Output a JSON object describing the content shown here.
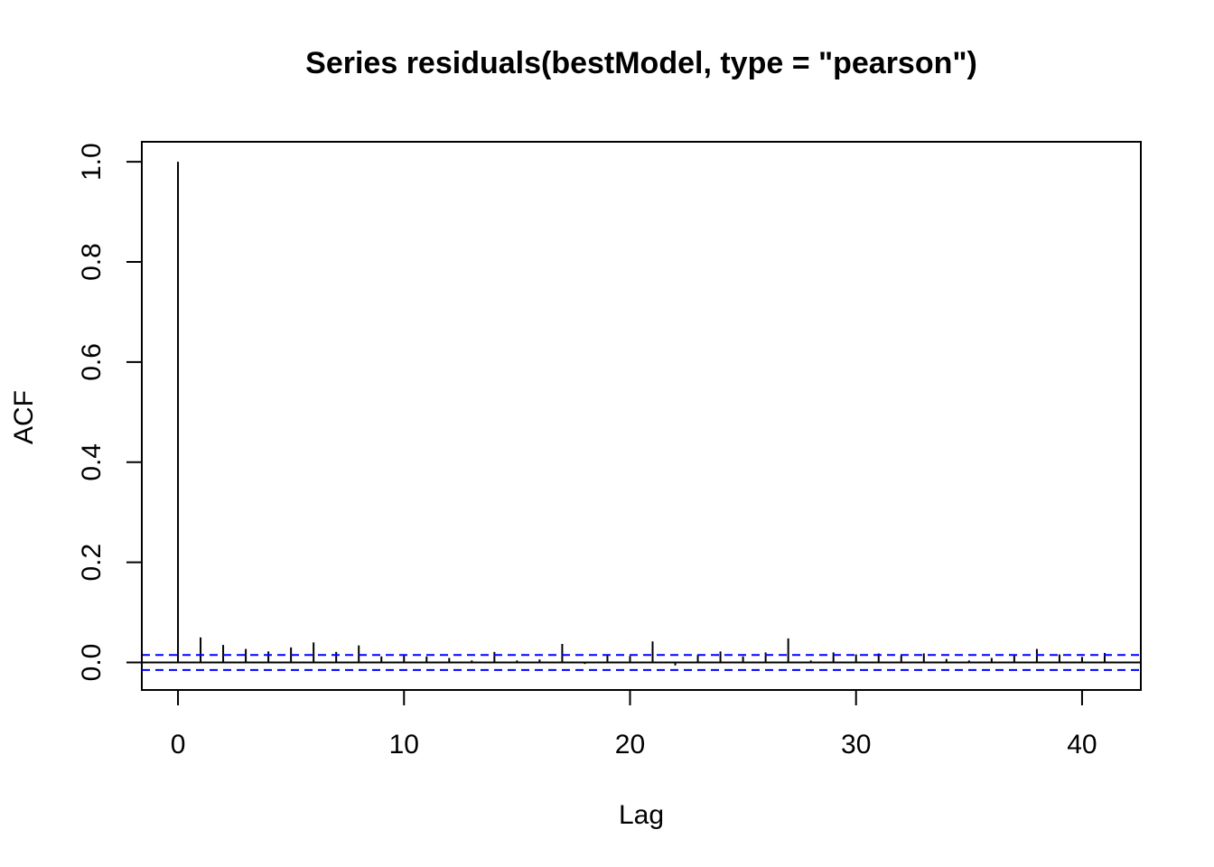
{
  "chart_data": {
    "type": "bar",
    "title": "Series  residuals(bestModel, type = \"pearson\")",
    "xlabel": "Lag",
    "ylabel": "ACF",
    "xlim": [
      -1.6,
      42.6
    ],
    "ylim": [
      -0.055,
      1.04
    ],
    "x_ticks": [
      0,
      10,
      20,
      30,
      40
    ],
    "y_ticks": [
      0.0,
      0.2,
      0.4,
      0.6,
      0.8,
      1.0
    ],
    "x_tick_labels": [
      "0",
      "10",
      "20",
      "30",
      "40"
    ],
    "y_tick_labels": [
      "0.0",
      "0.2",
      "0.4",
      "0.6",
      "0.8",
      "1.0"
    ],
    "lags": [
      0,
      1,
      2,
      3,
      4,
      5,
      6,
      7,
      8,
      9,
      10,
      11,
      12,
      13,
      14,
      15,
      16,
      17,
      18,
      19,
      20,
      21,
      22,
      23,
      24,
      25,
      26,
      27,
      28,
      29,
      30,
      31,
      32,
      33,
      34,
      35,
      36,
      37,
      38,
      39,
      40,
      41
    ],
    "acf": [
      1.0,
      0.05,
      0.035,
      0.027,
      0.022,
      0.03,
      0.04,
      0.021,
      0.034,
      0.012,
      0.014,
      0.012,
      0.009,
      0.004,
      0.021,
      0.004,
      0.006,
      0.037,
      -0.003,
      0.016,
      0.013,
      0.042,
      -0.006,
      0.015,
      0.022,
      0.012,
      0.02,
      0.048,
      0.004,
      0.02,
      0.016,
      0.018,
      0.014,
      0.018,
      0.007,
      0.004,
      0.009,
      0.015,
      0.027,
      0.016,
      0.011,
      0.019
    ],
    "confidence_bound": 0.015,
    "colors": {
      "bars": "#000000",
      "confidence_lines": "#0000ff",
      "zero_line": "#000000"
    },
    "grid": false,
    "legend": "none"
  }
}
